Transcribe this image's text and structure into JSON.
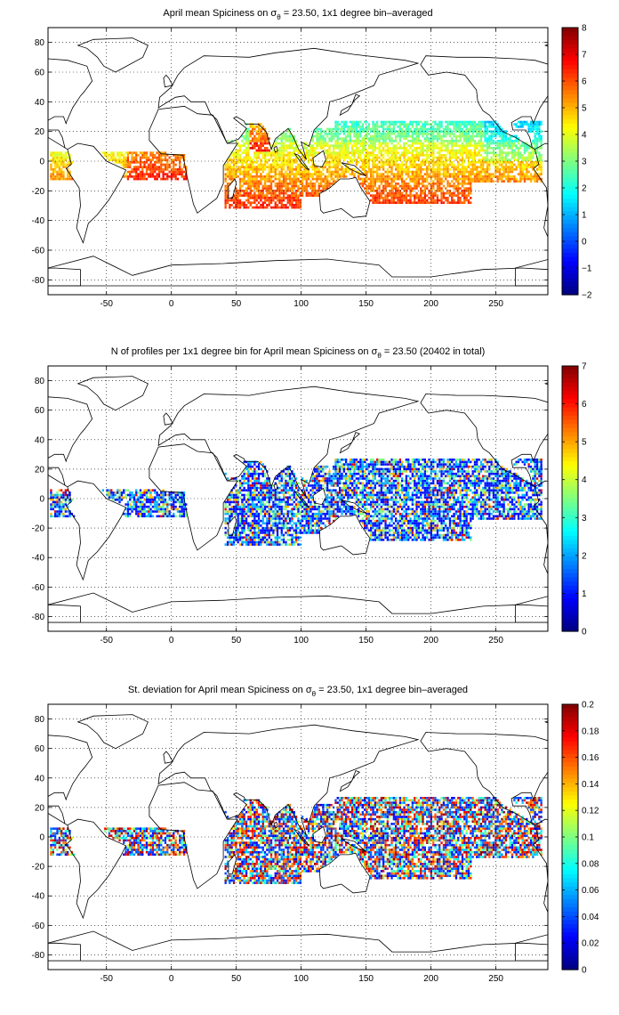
{
  "panels": [
    {
      "title_pre": "April mean Spiciness on σ",
      "title_sub": "θ",
      "title_post": " = 23.50, 1x1 degree bin–averaged",
      "colorbar": {
        "min": -2,
        "max": 8,
        "ticks": [
          "8",
          "7",
          "6",
          "5",
          "4",
          "3",
          "2",
          "1",
          "0",
          "−1",
          "−2"
        ]
      },
      "field": "spiciness"
    },
    {
      "title_pre": "N of profiles per 1x1 degree bin for April mean Spiciness on σ",
      "title_sub": "θ",
      "title_post": " = 23.50 (20402 in total)",
      "colorbar": {
        "min": 0,
        "max": 7,
        "ticks": [
          "7",
          "6",
          "5",
          "4",
          "3",
          "2",
          "1",
          "0"
        ]
      },
      "field": "count"
    },
    {
      "title_pre": "St. deviation for April mean Spiciness on σ",
      "title_sub": "θ",
      "title_post": " = 23.50, 1x1 degree bin–averaged",
      "colorbar": {
        "min": 0,
        "max": 0.2,
        "ticks": [
          "0.2",
          "0.18",
          "0.16",
          "0.14",
          "0.12",
          "0.1",
          "0.08",
          "0.06",
          "0.04",
          "0.02",
          "0"
        ]
      },
      "field": "std"
    }
  ],
  "axes": {
    "xlim": [
      -95,
      290
    ],
    "ylim": [
      -90,
      90
    ],
    "xticks": [
      "-50",
      "0",
      "50",
      "100",
      "150",
      "200",
      "250"
    ],
    "yticks": [
      "80",
      "60",
      "40",
      "20",
      "0",
      "-20",
      "-40",
      "-60",
      "-80"
    ],
    "grid": "dotted"
  },
  "colormap": "jet"
}
